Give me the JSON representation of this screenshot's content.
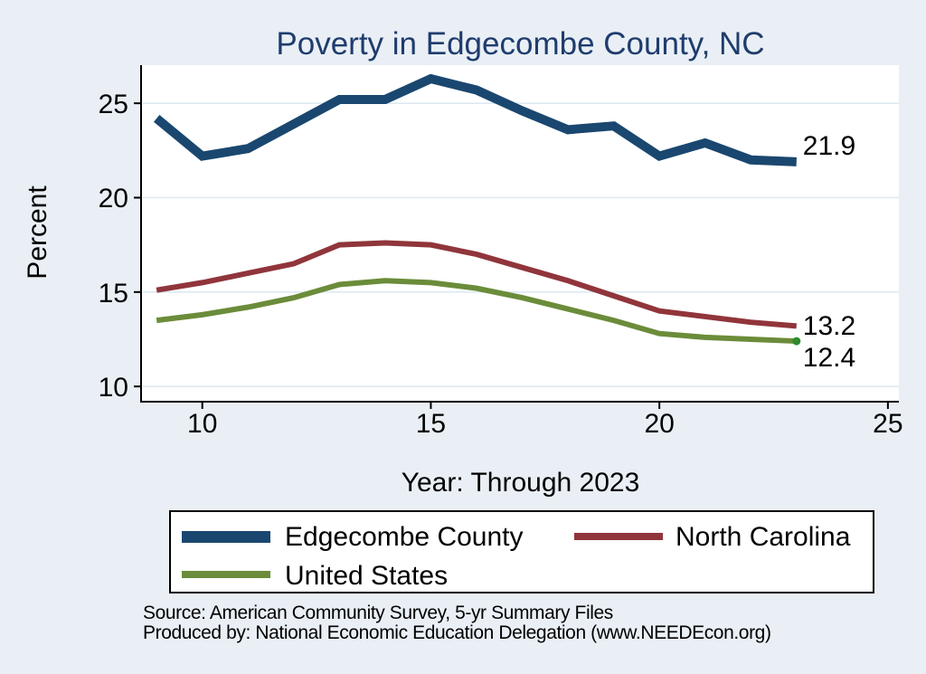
{
  "colors": {
    "background": "#e9eff5",
    "plot_background": "#ffffff",
    "grid": "#dde9f2",
    "axis": "#000000",
    "title": "#1f3c6d"
  },
  "source": {
    "line1": "Source: American Community Survey, 5-yr Summary Files",
    "line2": "Produced by: National Economic Education Delegation (www.NEEDEcon.org)"
  },
  "chart_data": {
    "type": "line",
    "title": "Poverty in Edgecombe County, NC",
    "xlabel": "Year: Through 2023",
    "ylabel": "Percent",
    "x": [
      9,
      10,
      11,
      12,
      13,
      14,
      15,
      16,
      17,
      18,
      19,
      20,
      21,
      22,
      23
    ],
    "x_ticks": [
      10,
      15,
      20,
      25
    ],
    "y_ticks": [
      25,
      20,
      15,
      10
    ],
    "x_range": [
      8.68,
      25.24
    ],
    "y_range": [
      9.24,
      27.02
    ],
    "grid": true,
    "legend_position": "bottom",
    "series": [
      {
        "name": "Edgecombe County",
        "color": "#1a476f",
        "line_width": 10,
        "end_label": "21.9",
        "values": [
          24.2,
          22.2,
          22.6,
          23.9,
          25.2,
          25.2,
          26.3,
          25.7,
          24.6,
          23.6,
          23.8,
          22.2,
          22.9,
          22.0,
          21.9
        ]
      },
      {
        "name": "North Carolina",
        "color": "#90353b",
        "line_width": 6,
        "end_label": "13.2",
        "values": [
          15.1,
          15.5,
          16.0,
          16.5,
          17.5,
          17.6,
          17.5,
          17.0,
          16.3,
          15.6,
          14.8,
          14.0,
          13.7,
          13.4,
          13.2
        ]
      },
      {
        "name": "United States",
        "color": "#6b8c3a",
        "line_width": 6,
        "end_label": "12.4",
        "end_marker": true,
        "end_marker_color": "#2e8b2e",
        "values": [
          13.5,
          13.8,
          14.2,
          14.7,
          15.4,
          15.6,
          15.5,
          15.2,
          14.7,
          14.1,
          13.5,
          12.8,
          12.6,
          12.5,
          12.4
        ]
      }
    ]
  }
}
